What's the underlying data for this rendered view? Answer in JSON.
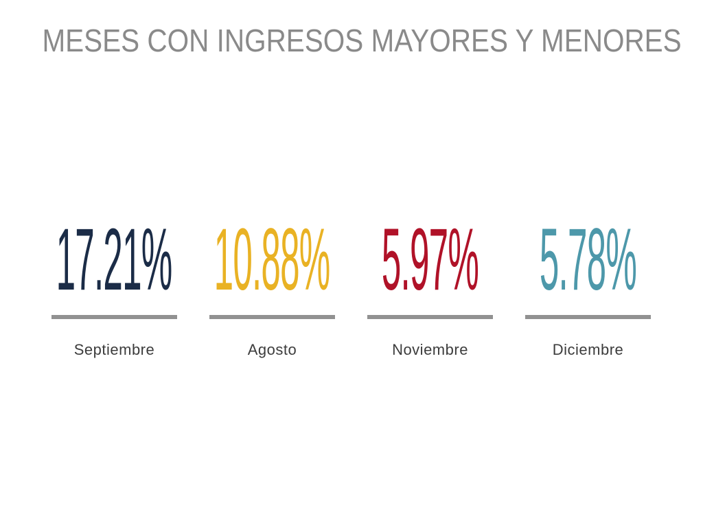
{
  "title": {
    "text": "MESES CON INGRESOS MAYORES Y MENORES",
    "color": "#8a8a8a"
  },
  "chart_data": {
    "type": "bar",
    "title": "MESES CON INGRESOS MAYORES Y MENORES",
    "categories": [
      "Septiembre",
      "Agosto",
      "Noviembre",
      "Diciembre"
    ],
    "values": [
      17.21,
      10.88,
      5.97,
      5.78
    ],
    "value_labels": [
      "17.21%",
      "10.88%",
      "5.97%",
      "5.78%"
    ],
    "series_colors": [
      "#1b2c47",
      "#e9b224",
      "#b01228",
      "#4d98aa"
    ],
    "xlabel": "",
    "ylabel": "",
    "legend": "none",
    "grid": "off",
    "layout_note": "KPI-style big-number display with gray underline per category"
  },
  "stats": [
    {
      "value": "17.21%",
      "label": "Septiembre",
      "color": "#1b2c47"
    },
    {
      "value": "10.88%",
      "label": "Agosto",
      "color": "#e9b224"
    },
    {
      "value": "5.97%",
      "label": "Noviembre",
      "color": "#b01228"
    },
    {
      "value": "5.78%",
      "label": "Diciembre",
      "color": "#4d98aa"
    }
  ],
  "underline_color": "#919191",
  "label_color": "#3c3c3c"
}
